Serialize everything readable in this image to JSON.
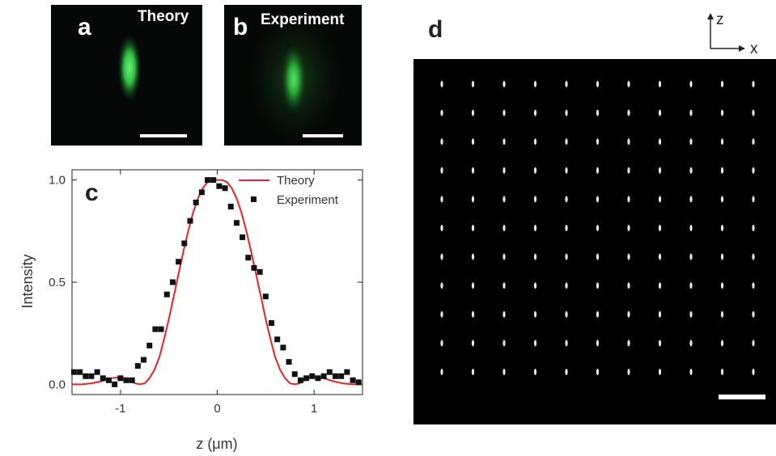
{
  "panels": {
    "a": {
      "letter": "a",
      "caption": "Theory"
    },
    "b": {
      "letter": "b",
      "caption": "Experiment"
    },
    "c": {
      "letter": "c"
    },
    "d": {
      "letter": "d",
      "axis_z": "z",
      "axis_x": "x"
    }
  },
  "colors": {
    "theory": "#e3232c",
    "experiment": "#111111",
    "spot": "#3dd64f"
  },
  "chart_data": {
    "type": "line",
    "xlabel": "z (μm)",
    "ylabel": "Intensity",
    "xlim": [
      -1.5,
      1.5
    ],
    "ylim": [
      -0.05,
      1.05
    ],
    "xticks": [
      -1,
      0,
      1
    ],
    "yticks": [
      0.0,
      0.5,
      1.0
    ],
    "xtick_labels": [
      "-1",
      "0",
      "1"
    ],
    "ytick_labels": [
      "0.0",
      "0.5",
      "1.0"
    ],
    "legend": "top-right",
    "series": [
      {
        "name": "Theory",
        "style": "line",
        "x": [
          -1.5,
          -1.4,
          -1.3,
          -1.2,
          -1.1,
          -1.0,
          -0.95,
          -0.9,
          -0.85,
          -0.8,
          -0.75,
          -0.7,
          -0.65,
          -0.6,
          -0.55,
          -0.5,
          -0.45,
          -0.4,
          -0.35,
          -0.3,
          -0.25,
          -0.2,
          -0.15,
          -0.1,
          -0.05,
          0.0,
          0.05,
          0.1,
          0.15,
          0.2,
          0.25,
          0.3,
          0.35,
          0.4,
          0.45,
          0.5,
          0.55,
          0.6,
          0.65,
          0.7,
          0.75,
          0.8,
          0.85,
          0.9,
          0.95,
          1.0,
          1.1,
          1.2,
          1.3,
          1.4,
          1.5
        ],
        "y": [
          0.0,
          0.0,
          0.005,
          0.015,
          0.03,
          0.035,
          0.03,
          0.02,
          0.005,
          0.0,
          0.005,
          0.03,
          0.07,
          0.13,
          0.22,
          0.32,
          0.43,
          0.54,
          0.65,
          0.75,
          0.84,
          0.91,
          0.96,
          0.99,
          1.0,
          1.0,
          1.0,
          0.99,
          0.96,
          0.91,
          0.84,
          0.75,
          0.65,
          0.54,
          0.43,
          0.32,
          0.22,
          0.13,
          0.07,
          0.03,
          0.005,
          0.0,
          0.005,
          0.02,
          0.03,
          0.035,
          0.03,
          0.015,
          0.005,
          0.0,
          0.0
        ]
      },
      {
        "name": "Experiment",
        "style": "markers",
        "x": [
          -1.48,
          -1.42,
          -1.36,
          -1.3,
          -1.24,
          -1.18,
          -1.12,
          -1.06,
          -1.0,
          -0.94,
          -0.88,
          -0.82,
          -0.76,
          -0.7,
          -0.64,
          -0.58,
          -0.52,
          -0.46,
          -0.4,
          -0.34,
          -0.28,
          -0.22,
          -0.16,
          -0.1,
          -0.04,
          0.02,
          0.08,
          0.14,
          0.2,
          0.26,
          0.32,
          0.38,
          0.44,
          0.5,
          0.56,
          0.62,
          0.68,
          0.74,
          0.8,
          0.86,
          0.92,
          0.98,
          1.04,
          1.1,
          1.16,
          1.22,
          1.28,
          1.34,
          1.4,
          1.46
        ],
        "y": [
          0.06,
          0.06,
          0.04,
          0.04,
          0.06,
          0.03,
          0.02,
          0.0,
          0.03,
          0.02,
          0.02,
          0.09,
          0.12,
          0.19,
          0.27,
          0.27,
          0.44,
          0.5,
          0.6,
          0.69,
          0.8,
          0.89,
          0.94,
          1.0,
          1.0,
          0.97,
          0.96,
          0.87,
          0.79,
          0.72,
          0.62,
          0.57,
          0.55,
          0.43,
          0.3,
          0.22,
          0.18,
          0.11,
          0.05,
          0.02,
          0.03,
          0.04,
          0.03,
          0.04,
          0.06,
          0.04,
          0.04,
          0.06,
          0.02,
          0.01
        ]
      }
    ]
  }
}
